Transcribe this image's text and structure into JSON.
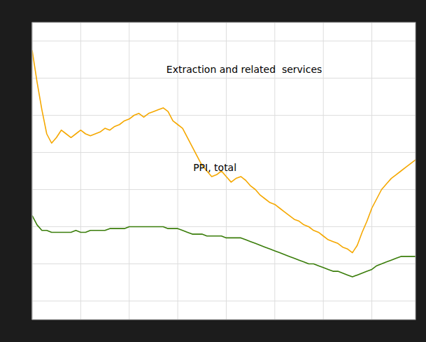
{
  "chart_data": {
    "type": "line",
    "x": [
      0,
      1,
      2,
      3,
      4,
      5,
      6,
      7,
      8,
      9,
      10,
      11,
      12,
      13,
      14,
      15,
      16,
      17,
      18,
      19,
      20,
      21,
      22,
      23,
      24,
      25,
      26,
      27,
      28,
      29,
      30,
      31,
      32,
      33,
      34,
      35,
      36,
      37,
      38,
      39,
      40,
      41,
      42,
      43,
      44,
      45,
      46,
      47,
      48,
      49,
      50,
      51,
      52,
      53,
      54,
      55,
      56,
      57,
      58,
      59,
      60,
      61,
      62,
      63,
      64,
      65,
      66,
      67,
      68,
      69,
      70,
      71,
      72,
      73,
      74,
      75,
      76,
      77,
      78,
      79
    ],
    "series": [
      {
        "color": "#F5A800",
        "values": [
          195,
          178,
          163,
          150,
          145,
          148,
          152,
          150,
          148,
          150,
          152,
          150,
          149,
          150,
          151,
          153,
          152,
          154,
          155,
          157,
          158,
          160,
          161,
          159,
          161,
          162,
          163,
          164,
          162,
          157,
          155,
          153,
          148,
          143,
          138,
          133,
          130,
          127,
          128,
          130,
          127,
          124,
          126,
          127,
          125,
          122,
          120,
          117,
          115,
          113,
          112,
          110,
          108,
          106,
          104,
          103,
          101,
          100,
          98,
          97,
          95,
          93,
          92,
          91,
          89,
          88,
          86,
          90,
          97,
          103,
          110,
          115,
          120,
          123,
          126,
          128,
          130,
          132,
          134,
          136
        ]
      },
      {
        "color": "#3A7D0A",
        "values": [
          106,
          101,
          98,
          98,
          97,
          97,
          97,
          97,
          97,
          98,
          97,
          97,
          98,
          98,
          98,
          98,
          99,
          99,
          99,
          99,
          100,
          100,
          100,
          100,
          100,
          100,
          100,
          100,
          99,
          99,
          99,
          98,
          97,
          96,
          96,
          96,
          95,
          95,
          95,
          95,
          94,
          94,
          94,
          94,
          93,
          92,
          91,
          90,
          89,
          88,
          87,
          86,
          85,
          84,
          83,
          82,
          81,
          80,
          80,
          79,
          78,
          77,
          76,
          76,
          75,
          74,
          73,
          74,
          75,
          76,
          77,
          79,
          80,
          81,
          82,
          83,
          84,
          84,
          84,
          84
        ]
      }
    ],
    "annotations": [
      "Extraction and related  services",
      "PPI, total"
    ],
    "xlim": [
      0,
      79
    ],
    "xticks": [
      0,
      10,
      20,
      30,
      40,
      50,
      60,
      70
    ],
    "ylim": [
      50,
      210
    ],
    "yticks": [
      60,
      80,
      100,
      120,
      140,
      160,
      180,
      200
    ],
    "grid": true,
    "tick_labels": false
  }
}
